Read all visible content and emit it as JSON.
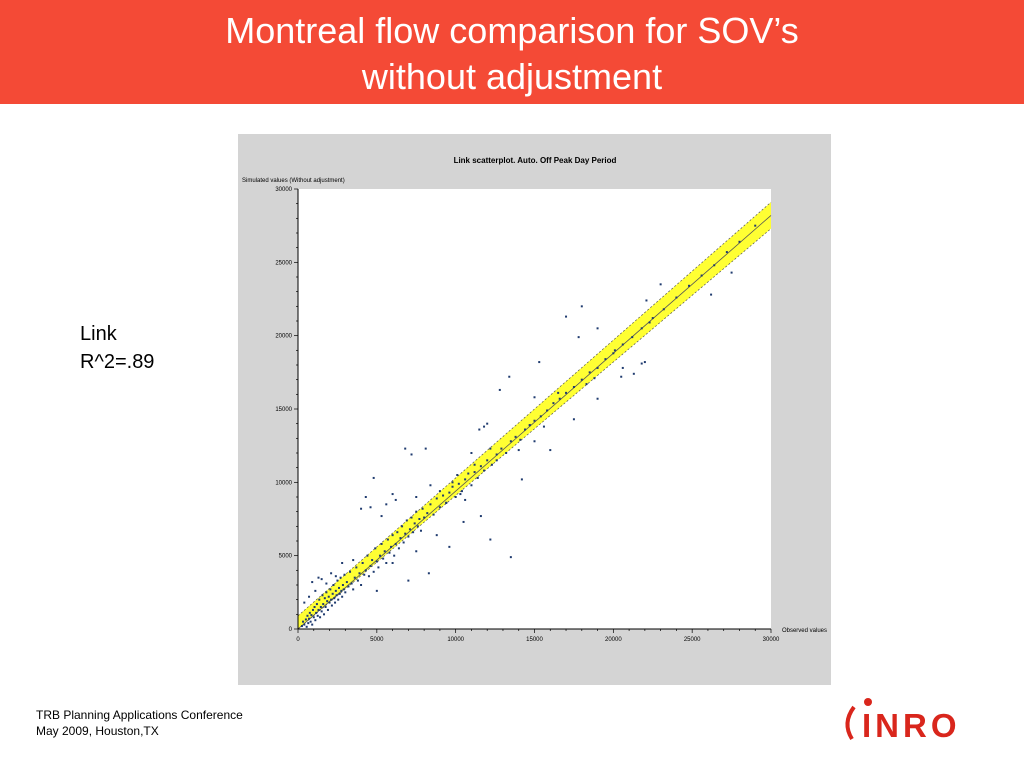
{
  "slide": {
    "title_line1": "Montreal flow comparison for SOV’s",
    "title_line2": "without adjustment",
    "stat_label": "Link",
    "stat_value": "R^2=.89",
    "footer_line1": "TRB Planning Applications Conference",
    "footer_line2": "May 2009, Houston,TX",
    "logo_text": "INRO",
    "banner_color": "#f44a36"
  },
  "chart_data": {
    "type": "scatter",
    "title": "Link scatterplot. Auto. Off Peak Day Period",
    "ylabel": "Simulated values (Without adjustment)",
    "xlabel": "Observed values",
    "xlim": [
      0,
      30000
    ],
    "ylim": [
      0,
      30000
    ],
    "x_ticks": [
      0,
      5000,
      10000,
      15000,
      20000,
      25000,
      30000
    ],
    "x_tick_labels": [
      "0",
      "5000",
      "10000",
      "15000",
      "20000",
      "25000",
      "30000"
    ],
    "y_ticks": [
      0,
      5000,
      10000,
      15000,
      20000,
      25000,
      30000
    ],
    "y_tick_labels": [
      "0",
      "5000",
      "10000",
      "15000",
      "20000",
      "25000",
      "30000"
    ],
    "regression_line": {
      "slope": 0.94,
      "intercept": 0
    },
    "confidence_band": {
      "half_width": 900,
      "color": "#ffff33"
    },
    "point_color": "#1f3b6f",
    "points": [
      [
        250,
        200
      ],
      [
        320,
        500
      ],
      [
        400,
        300
      ],
      [
        500,
        650
      ],
      [
        550,
        150
      ],
      [
        600,
        900
      ],
      [
        650,
        400
      ],
      [
        700,
        700
      ],
      [
        750,
        1100
      ],
      [
        800,
        500
      ],
      [
        850,
        950
      ],
      [
        900,
        300
      ],
      [
        950,
        1300
      ],
      [
        1000,
        800
      ],
      [
        1050,
        1500
      ],
      [
        1100,
        600
      ],
      [
        1150,
        1100
      ],
      [
        1200,
        1700
      ],
      [
        1250,
        900
      ],
      [
        1300,
        1300
      ],
      [
        1350,
        2000
      ],
      [
        1400,
        800
      ],
      [
        1450,
        1500
      ],
      [
        1500,
        1200
      ],
      [
        1550,
        2300
      ],
      [
        1600,
        1700
      ],
      [
        1650,
        1000
      ],
      [
        1700,
        2100
      ],
      [
        1750,
        1500
      ],
      [
        1800,
        2500
      ],
      [
        1850,
        1900
      ],
      [
        1900,
        1300
      ],
      [
        1950,
        2200
      ],
      [
        2000,
        1800
      ],
      [
        2050,
        2700
      ],
      [
        2100,
        2000
      ],
      [
        2150,
        1600
      ],
      [
        2200,
        2400
      ],
      [
        2250,
        3000
      ],
      [
        2300,
        2100
      ],
      [
        2350,
        1800
      ],
      [
        2400,
        2600
      ],
      [
        2450,
        2300
      ],
      [
        2500,
        3300
      ],
      [
        2550,
        2000
      ],
      [
        2600,
        2800
      ],
      [
        2650,
        2400
      ],
      [
        2700,
        3500
      ],
      [
        2750,
        2600
      ],
      [
        2800,
        2200
      ],
      [
        2850,
        3000
      ],
      [
        2900,
        2700
      ],
      [
        2950,
        3700
      ],
      [
        3000,
        2500
      ],
      [
        3100,
        3200
      ],
      [
        3200,
        2900
      ],
      [
        3300,
        3900
      ],
      [
        3400,
        3100
      ],
      [
        3500,
        2700
      ],
      [
        3600,
        3500
      ],
      [
        3700,
        4200
      ],
      [
        3800,
        3300
      ],
      [
        3900,
        3800
      ],
      [
        4000,
        3000
      ],
      [
        4100,
        4500
      ],
      [
        4200,
        3700
      ],
      [
        4300,
        4000
      ],
      [
        4400,
        5000
      ],
      [
        4500,
        3600
      ],
      [
        4600,
        4300
      ],
      [
        4700,
        4700
      ],
      [
        4800,
        3900
      ],
      [
        4900,
        5500
      ],
      [
        5000,
        4600
      ],
      [
        5100,
        4200
      ],
      [
        5200,
        5000
      ],
      [
        5300,
        5800
      ],
      [
        5400,
        4800
      ],
      [
        5500,
        5300
      ],
      [
        5600,
        4500
      ],
      [
        5700,
        6100
      ],
      [
        5800,
        5200
      ],
      [
        5900,
        5600
      ],
      [
        6000,
        6400
      ],
      [
        6100,
        5000
      ],
      [
        6200,
        5800
      ],
      [
        6300,
        6600
      ],
      [
        6400,
        5500
      ],
      [
        6500,
        6200
      ],
      [
        6600,
        7000
      ],
      [
        6700,
        5900
      ],
      [
        6800,
        6500
      ],
      [
        6900,
        7400
      ],
      [
        7000,
        6300
      ],
      [
        7100,
        6800
      ],
      [
        7200,
        7600
      ],
      [
        7300,
        6600
      ],
      [
        7400,
        7200
      ],
      [
        7500,
        8000
      ],
      [
        7600,
        7000
      ],
      [
        7700,
        7500
      ],
      [
        7800,
        6700
      ],
      [
        7900,
        8200
      ],
      [
        8000,
        7600
      ],
      [
        8200,
        7900
      ],
      [
        8400,
        8500
      ],
      [
        8600,
        7800
      ],
      [
        8800,
        8900
      ],
      [
        9000,
        8300
      ],
      [
        9200,
        9100
      ],
      [
        9400,
        8600
      ],
      [
        9600,
        9300
      ],
      [
        9800,
        9700
      ],
      [
        10000,
        9000
      ],
      [
        10200,
        9900
      ],
      [
        10400,
        9400
      ],
      [
        10600,
        10200
      ],
      [
        10800,
        10600
      ],
      [
        11000,
        9800
      ],
      [
        11200,
        10700
      ],
      [
        11400,
        10300
      ],
      [
        11600,
        11100
      ],
      [
        11800,
        10800
      ],
      [
        12000,
        11500
      ],
      [
        12300,
        11200
      ],
      [
        12600,
        11900
      ],
      [
        12900,
        12300
      ],
      [
        13200,
        12000
      ],
      [
        13500,
        12800
      ],
      [
        13800,
        13100
      ],
      [
        14100,
        12900
      ],
      [
        14400,
        13600
      ],
      [
        14700,
        13900
      ],
      [
        15000,
        14200
      ],
      [
        15400,
        14500
      ],
      [
        15800,
        14900
      ],
      [
        16200,
        15400
      ],
      [
        16600,
        15700
      ],
      [
        17000,
        16100
      ],
      [
        17500,
        16500
      ],
      [
        18000,
        17000
      ],
      [
        18500,
        17500
      ],
      [
        19000,
        17800
      ],
      [
        19500,
        18400
      ],
      [
        20000,
        18800
      ],
      [
        20600,
        19400
      ],
      [
        21200,
        19900
      ],
      [
        21800,
        20500
      ],
      [
        22500,
        21200
      ],
      [
        23200,
        21800
      ],
      [
        24000,
        22600
      ],
      [
        24800,
        23400
      ],
      [
        25600,
        24100
      ],
      [
        26400,
        24800
      ],
      [
        27200,
        25700
      ],
      [
        28000,
        26400
      ],
      [
        29000,
        27500
      ],
      [
        400,
        1800
      ],
      [
        700,
        2200
      ],
      [
        900,
        3200
      ],
      [
        1100,
        2600
      ],
      [
        1300,
        3500
      ],
      [
        1500,
        3400
      ],
      [
        1800,
        3100
      ],
      [
        2100,
        3800
      ],
      [
        2400,
        3600
      ],
      [
        2800,
        4500
      ],
      [
        3500,
        4700
      ],
      [
        4000,
        8200
      ],
      [
        4300,
        9000
      ],
      [
        4600,
        8300
      ],
      [
        4800,
        10300
      ],
      [
        5300,
        7700
      ],
      [
        5600,
        8500
      ],
      [
        6000,
        9200
      ],
      [
        6200,
        8800
      ],
      [
        6800,
        12300
      ],
      [
        7200,
        11900
      ],
      [
        7500,
        9000
      ],
      [
        8100,
        12300
      ],
      [
        8400,
        9800
      ],
      [
        9000,
        9400
      ],
      [
        9400,
        8600
      ],
      [
        9800,
        10000
      ],
      [
        10100,
        10500
      ],
      [
        10300,
        9200
      ],
      [
        10600,
        8800
      ],
      [
        11000,
        12000
      ],
      [
        11200,
        11200
      ],
      [
        11500,
        13600
      ],
      [
        11800,
        13800
      ],
      [
        12000,
        14000
      ],
      [
        12200,
        12300
      ],
      [
        12600,
        11500
      ],
      [
        12800,
        16300
      ],
      [
        13400,
        17200
      ],
      [
        14000,
        12200
      ],
      [
        14700,
        13900
      ],
      [
        15000,
        15800
      ],
      [
        15300,
        18200
      ],
      [
        15600,
        13800
      ],
      [
        16500,
        16100
      ],
      [
        17000,
        21300
      ],
      [
        17800,
        19900
      ],
      [
        18000,
        22000
      ],
      [
        18300,
        16700
      ],
      [
        18800,
        17100
      ],
      [
        19000,
        20500
      ],
      [
        20100,
        19000
      ],
      [
        20600,
        17800
      ],
      [
        21300,
        17400
      ],
      [
        21800,
        18100
      ],
      [
        22300,
        20900
      ],
      [
        22100,
        22400
      ],
      [
        23000,
        23500
      ],
      [
        5000,
        2600
      ],
      [
        6000,
        4500
      ],
      [
        7000,
        3300
      ],
      [
        7500,
        5300
      ],
      [
        8300,
        3800
      ],
      [
        8800,
        6400
      ],
      [
        9600,
        5600
      ],
      [
        10500,
        7300
      ],
      [
        11600,
        7700
      ],
      [
        12200,
        6100
      ],
      [
        13500,
        4900
      ],
      [
        14200,
        10200
      ],
      [
        15000,
        12800
      ],
      [
        16000,
        12200
      ],
      [
        17500,
        14300
      ],
      [
        19000,
        15700
      ],
      [
        20500,
        17200
      ],
      [
        22000,
        18200
      ],
      [
        26200,
        22800
      ],
      [
        27500,
        24300
      ]
    ]
  }
}
